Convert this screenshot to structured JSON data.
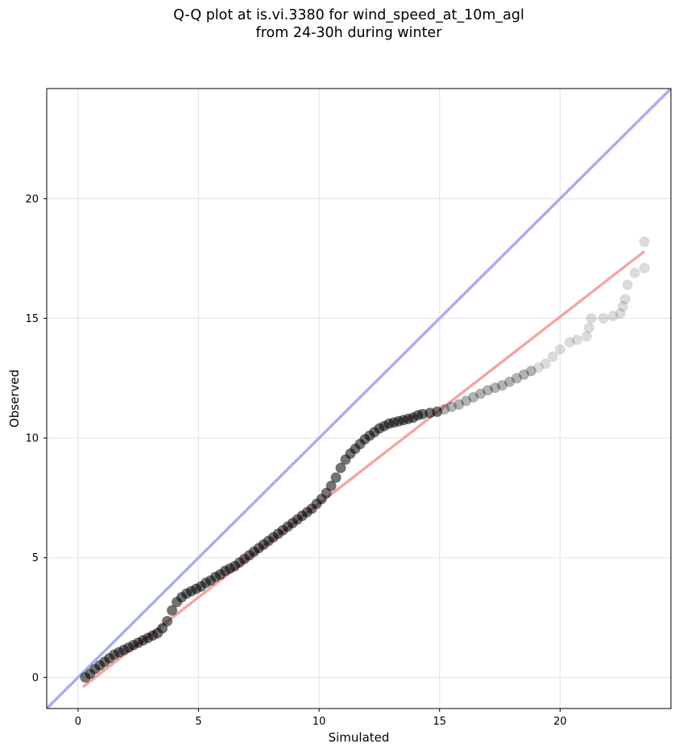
{
  "title": {
    "line1": "Q-Q plot at is.vi.3380 for wind_speed_at_10m_agl",
    "line2": "from 24-30h during winter"
  },
  "chart_data": {
    "type": "scatter",
    "title": "Q-Q plot at is.vi.3380 for wind_speed_at_10m_agl\nfrom 24-30h during winter",
    "xlabel": "Simulated",
    "ylabel": "Observed",
    "xlim": [
      -1.3,
      24.6
    ],
    "ylim": [
      -1.3,
      24.6
    ],
    "xticks": [
      0,
      5,
      10,
      15,
      20
    ],
    "yticks": [
      0,
      5,
      10,
      15,
      20
    ],
    "grid": true,
    "legend": null,
    "series": [
      {
        "kind": "points",
        "color": "#000000",
        "x": [
          0.3,
          0.5,
          0.7,
          0.9,
          1.1,
          1.3,
          1.5,
          1.7,
          1.9,
          2.1,
          2.3,
          2.5,
          2.7,
          2.9,
          3.1,
          3.3,
          3.5,
          3.7,
          3.9,
          4.1,
          4.3,
          4.5,
          4.7,
          4.9,
          5.1,
          5.3,
          5.5,
          5.7,
          5.9,
          6.1,
          6.3,
          6.5,
          6.7,
          6.9,
          7.1,
          7.3,
          7.5,
          7.7,
          7.9,
          8.1,
          8.3,
          8.5,
          8.7,
          8.9,
          9.1,
          9.3,
          9.5,
          9.7,
          9.9,
          10.1,
          10.3,
          10.5,
          10.7,
          10.9,
          11.1,
          11.3,
          11.5,
          11.7,
          11.9,
          12.1,
          12.3,
          12.5,
          12.7,
          12.9,
          13.1,
          13.3,
          13.5,
          13.7,
          13.9,
          14.1,
          14.3,
          14.6,
          14.9,
          15.2,
          15.5,
          15.8,
          16.1,
          16.4,
          16.7,
          17.0,
          17.3,
          17.6,
          17.9,
          18.2,
          18.5,
          18.8,
          19.1,
          19.4,
          19.7,
          20.0,
          20.4,
          20.7,
          21.1,
          21.2,
          21.3,
          21.8,
          22.2,
          22.5,
          22.6,
          22.7,
          22.8,
          23.1,
          23.5,
          23.5
        ],
        "y": [
          0.0,
          0.15,
          0.35,
          0.5,
          0.65,
          0.8,
          0.95,
          1.05,
          1.15,
          1.25,
          1.35,
          1.45,
          1.55,
          1.65,
          1.75,
          1.85,
          2.05,
          2.35,
          2.8,
          3.15,
          3.35,
          3.5,
          3.6,
          3.7,
          3.8,
          3.95,
          4.05,
          4.2,
          4.3,
          4.45,
          4.55,
          4.65,
          4.8,
          4.95,
          5.1,
          5.25,
          5.4,
          5.55,
          5.7,
          5.85,
          6.0,
          6.15,
          6.3,
          6.45,
          6.6,
          6.75,
          6.9,
          7.05,
          7.25,
          7.45,
          7.7,
          8.0,
          8.35,
          8.75,
          9.1,
          9.35,
          9.55,
          9.75,
          9.95,
          10.1,
          10.25,
          10.4,
          10.5,
          10.6,
          10.65,
          10.7,
          10.75,
          10.8,
          10.85,
          10.95,
          11.0,
          11.05,
          11.1,
          11.2,
          11.3,
          11.4,
          11.55,
          11.7,
          11.85,
          12.0,
          12.1,
          12.2,
          12.35,
          12.5,
          12.65,
          12.8,
          12.95,
          13.1,
          13.4,
          13.7,
          14.0,
          14.1,
          14.25,
          14.6,
          15.0,
          15.0,
          15.1,
          15.2,
          15.5,
          15.8,
          16.4,
          16.9,
          17.1,
          18.2
        ]
      },
      {
        "kind": "fit-line",
        "color": "#f4a6a6",
        "x": [
          0.2,
          23.5
        ],
        "y": [
          -0.4,
          17.8
        ]
      },
      {
        "kind": "identity-line",
        "color": "#a9adf2",
        "x": [
          -1.3,
          24.6
        ],
        "y": [
          -1.3,
          24.6
        ]
      }
    ]
  }
}
